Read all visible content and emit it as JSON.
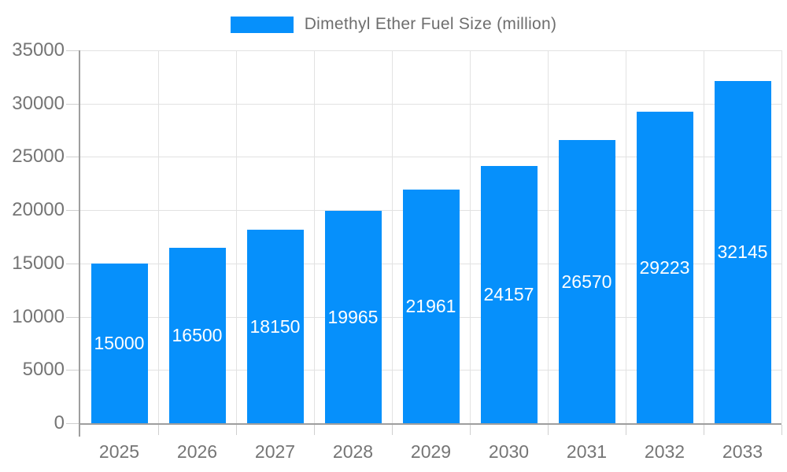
{
  "chart_data": {
    "type": "bar",
    "title": "",
    "categories": [
      "2025",
      "2026",
      "2027",
      "2028",
      "2029",
      "2030",
      "2031",
      "2032",
      "2033"
    ],
    "series": [
      {
        "name": "Dimethyl Ether Fuel Size (million)",
        "values": [
          15000,
          16500,
          18150,
          19965,
          21961,
          24157,
          26570,
          29223,
          32145
        ]
      }
    ],
    "xlabel": "",
    "ylabel": "",
    "ylim": [
      0,
      35000
    ],
    "yticks": [
      0,
      5000,
      10000,
      15000,
      20000,
      25000,
      30000,
      35000
    ],
    "grid": true,
    "legend_position": "top",
    "value_label_position": "inside-center",
    "colors": {
      "bar": "#0690fb",
      "grid_line": "#e2e2e2",
      "axis_line": "#9e9e9e",
      "tick": "#cfcfcf",
      "axis_text": "#757575",
      "legend_text": "#6e6e6e",
      "value_label_text": "#ffffff",
      "background": "#ffffff"
    }
  }
}
